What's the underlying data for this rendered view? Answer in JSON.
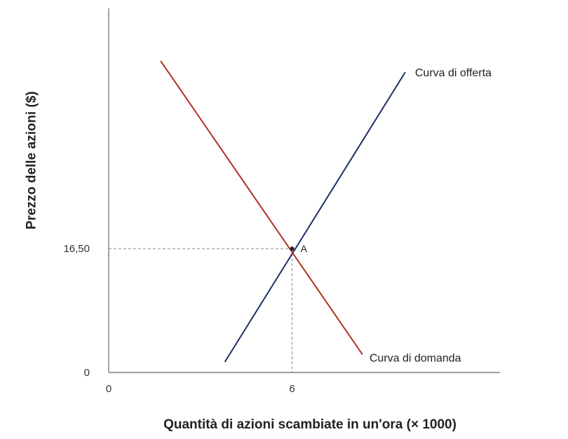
{
  "chart_data": {
    "type": "line",
    "xlabel": "Quantità di azioni scambiate in un'ora (× 1000)",
    "ylabel": "Prezzo delle azioni ($)",
    "x_ticks": [
      {
        "value": 0,
        "label": "0"
      },
      {
        "value": 6,
        "label": "6"
      }
    ],
    "y_ticks": [
      {
        "value": 0,
        "label": "0"
      },
      {
        "value": 16.5,
        "label": "16,50"
      }
    ],
    "xlim": [
      0,
      12.8
    ],
    "ylim": [
      0,
      48.5
    ],
    "grid": false,
    "series": [
      {
        "name": "Curva di offerta",
        "color": "#1f2e6b",
        "points": [
          [
            3.8,
            1.4
          ],
          [
            9.7,
            40.0
          ]
        ]
      },
      {
        "name": "Curva di domanda",
        "color": "#b03220",
        "points": [
          [
            1.7,
            41.5
          ],
          [
            8.3,
            2.4
          ]
        ]
      }
    ],
    "equilibrium": {
      "label": "A",
      "x": 6,
      "y": 16.5,
      "x_label": "6",
      "y_label": "16,50"
    }
  }
}
